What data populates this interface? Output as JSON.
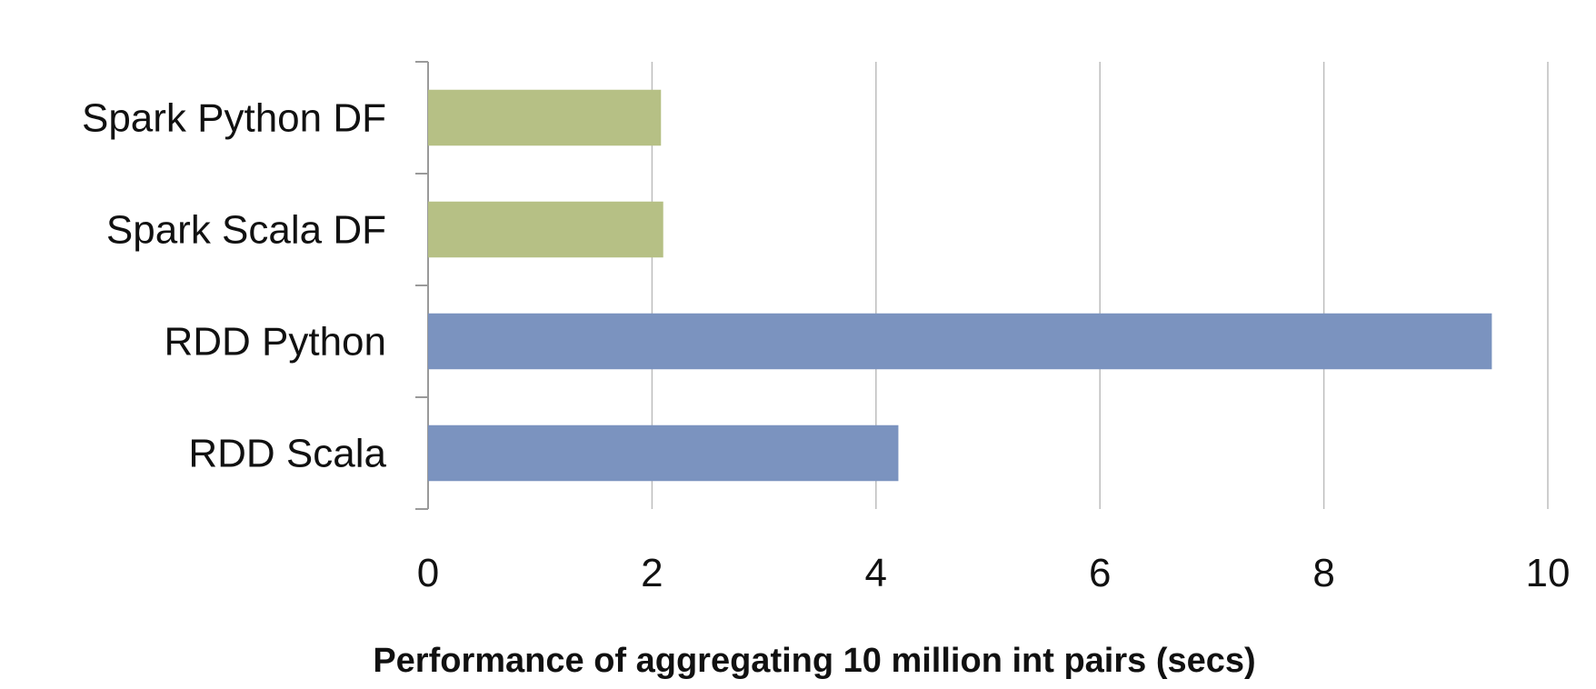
{
  "chart_data": {
    "type": "bar",
    "orientation": "horizontal",
    "categories": [
      "Spark Python DF",
      "Spark Scala DF",
      "RDD Python",
      "RDD Scala"
    ],
    "values": [
      2.08,
      2.1,
      9.5,
      4.2
    ],
    "colors": [
      "#b6c085",
      "#b6c085",
      "#7b93bf",
      "#7b93bf"
    ],
    "xlabel": "Performance of aggregating 10 million int pairs (secs)",
    "ylabel": "",
    "xlim": [
      0,
      10
    ],
    "xticks": [
      "0",
      "2",
      "4",
      "6",
      "8",
      "10"
    ],
    "grid": "vertical",
    "gridColor": "#bdbdbd",
    "axisColor": "#9a9a9a"
  }
}
